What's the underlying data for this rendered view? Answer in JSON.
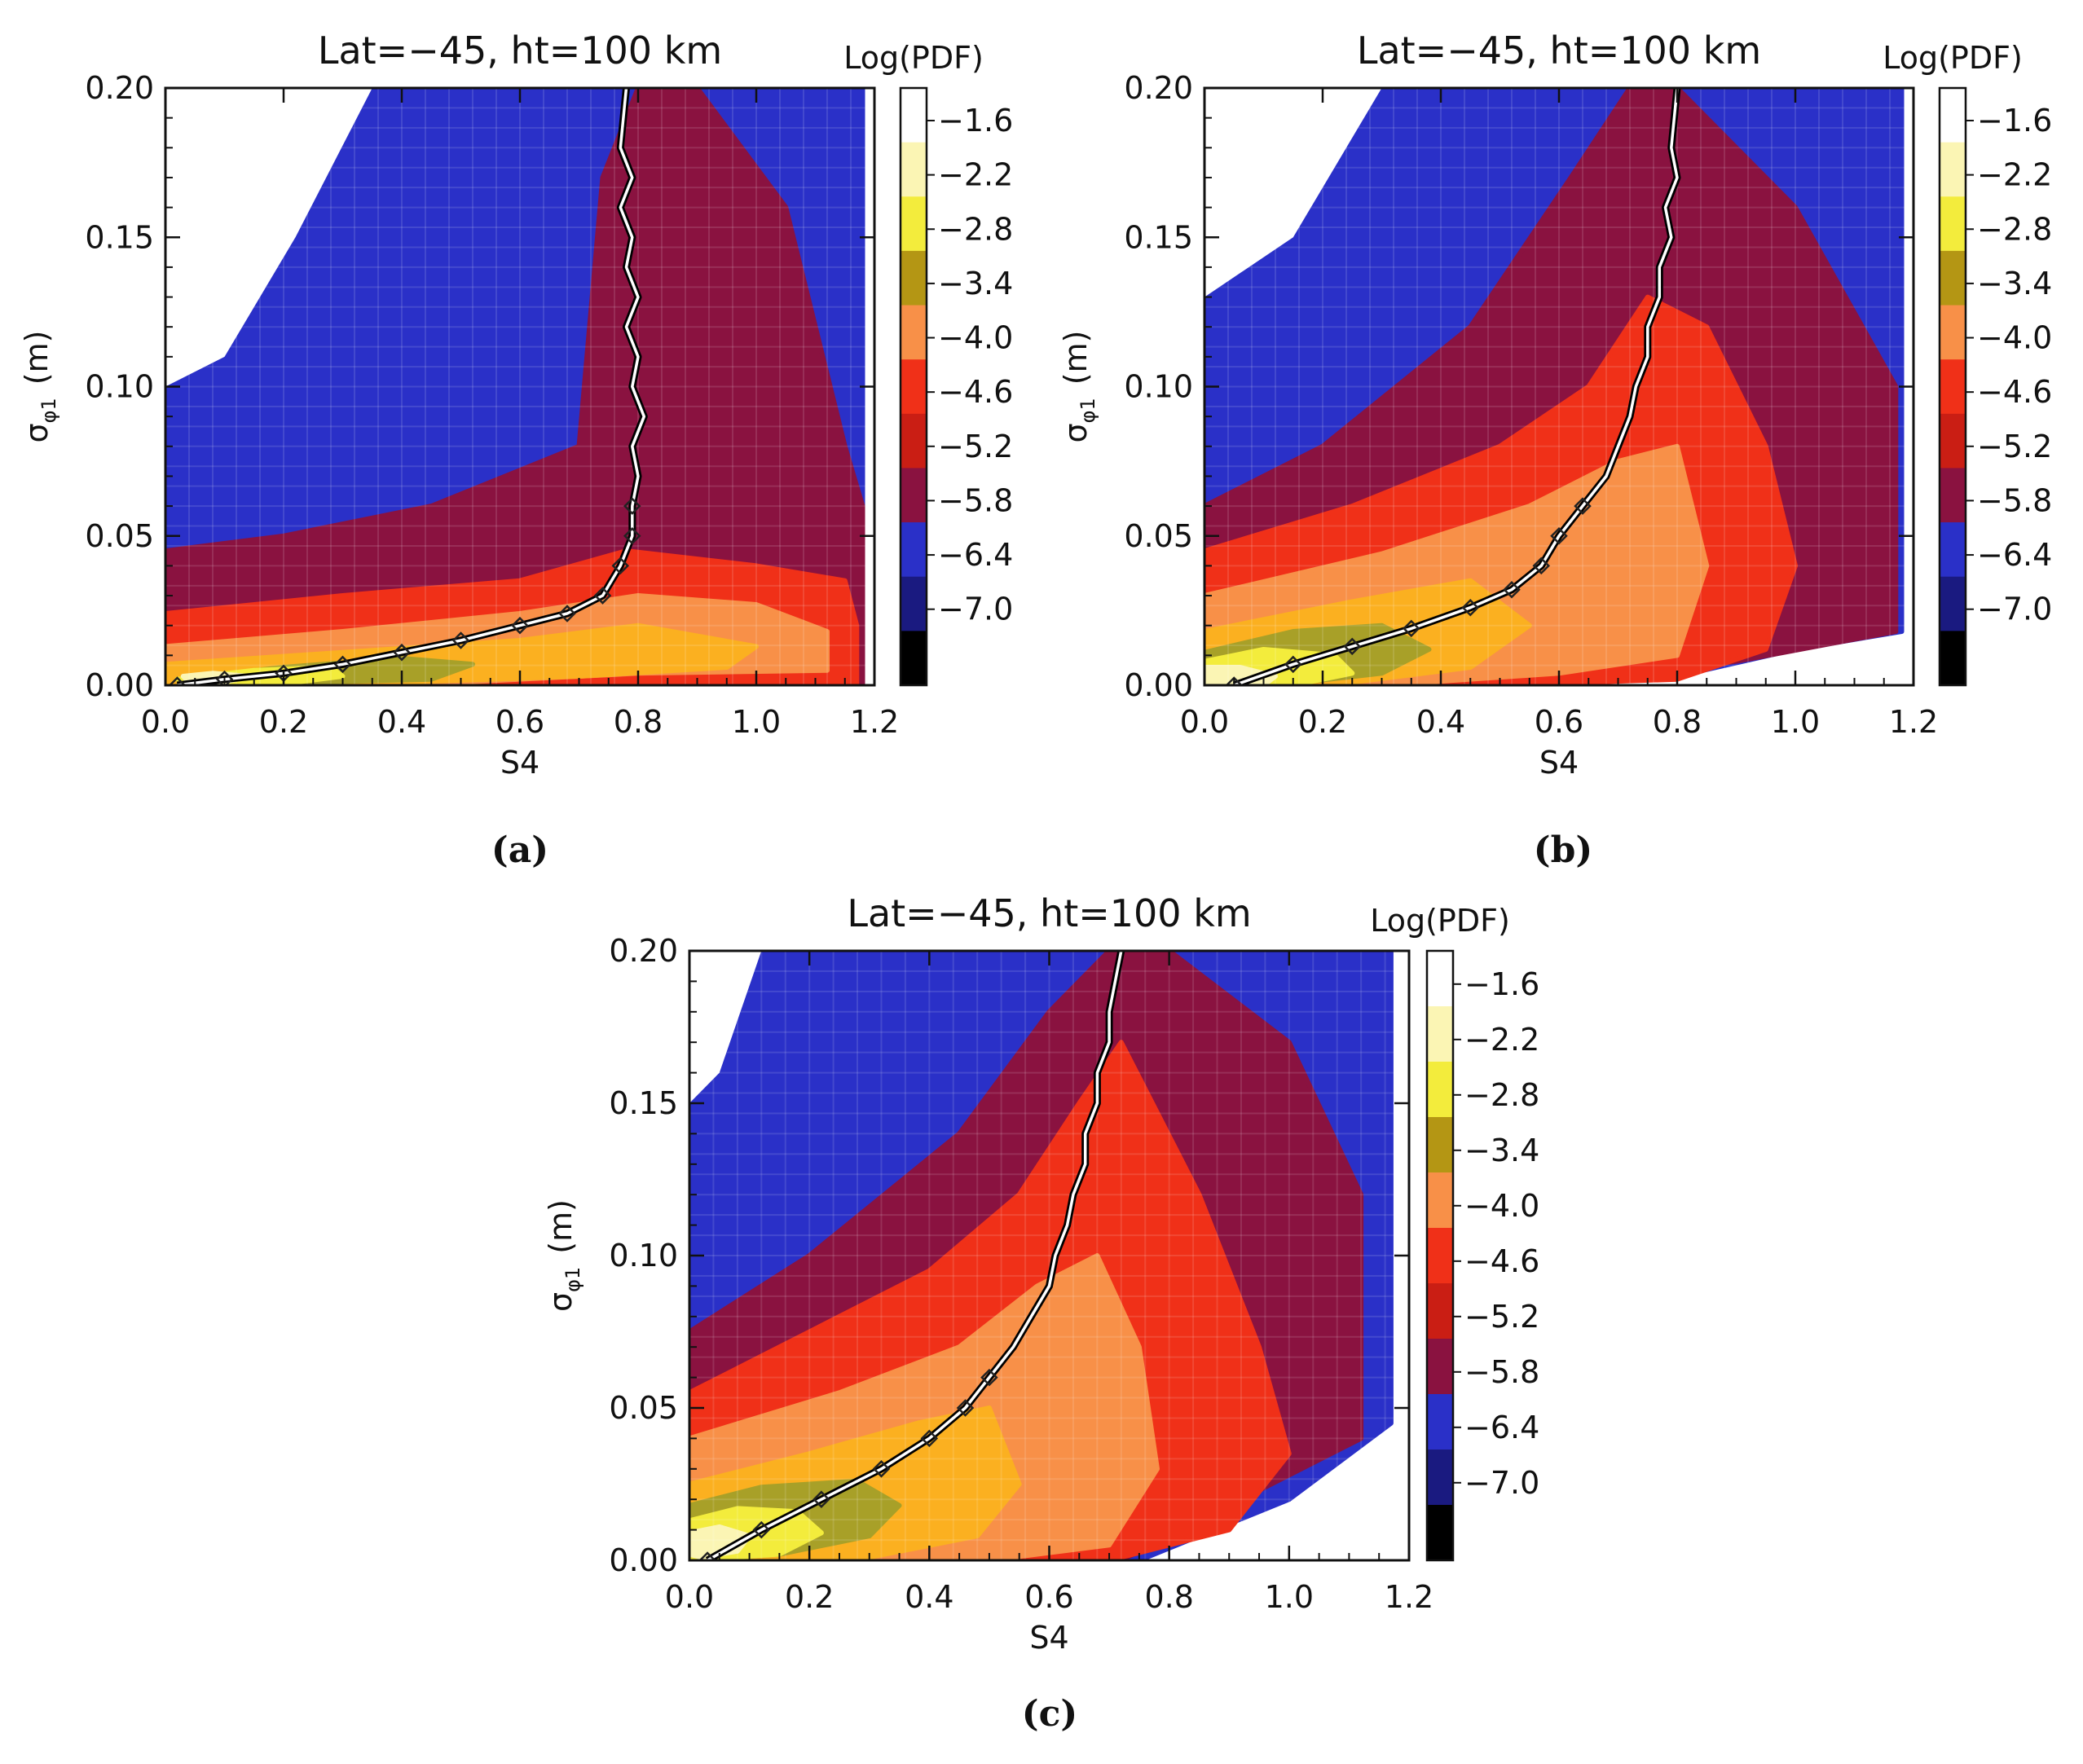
{
  "chart_data": [
    {
      "type": "heatmap",
      "panel_label": "(a)",
      "title": "Lat=−45,  ht=100 km",
      "xlabel": "S4",
      "ylabel_main": "σ",
      "ylabel_sub": "φ1",
      "ylabel_unit": "(m)",
      "xlim": [
        0.0,
        1.2
      ],
      "ylim": [
        0.0,
        0.2
      ],
      "xticks": [
        "0.0",
        "0.2",
        "0.4",
        "0.6",
        "0.8",
        "1.0",
        "1.2"
      ],
      "yticks": [
        "0.00",
        "0.05",
        "0.10",
        "0.15",
        "0.20"
      ],
      "colorbar": {
        "title": "Log(PDF)",
        "levels": [
          "−1.6",
          "−2.2",
          "−2.8",
          "−3.4",
          "−4.0",
          "−4.6",
          "−5.2",
          "−5.8",
          "−6.4",
          "−7.0"
        ],
        "colors": [
          "#ffffff",
          "#fbf5b4",
          "#f3ec3c",
          "#b49614",
          "#f89048",
          "#f03018",
          "#ca1e14",
          "#8a1240",
          "#2a30c8",
          "#1a1a80",
          "#000000"
        ]
      },
      "ridge_curve": {
        "x": [
          0.02,
          0.1,
          0.2,
          0.3,
          0.4,
          0.5,
          0.6,
          0.68,
          0.74,
          0.77,
          0.79,
          0.79,
          0.8,
          0.79,
          0.81,
          0.79,
          0.8,
          0.78,
          0.8,
          0.78,
          0.79,
          0.77,
          0.79,
          0.77,
          0.78
        ],
        "y": [
          0.0,
          0.002,
          0.004,
          0.007,
          0.011,
          0.015,
          0.02,
          0.024,
          0.03,
          0.04,
          0.05,
          0.06,
          0.07,
          0.08,
          0.09,
          0.1,
          0.11,
          0.12,
          0.13,
          0.14,
          0.15,
          0.16,
          0.17,
          0.18,
          0.2
        ]
      },
      "regions": [
        {
          "level": "−5.8",
          "color": "#2a30c8",
          "x": [
            0.0,
            0.0,
            0.05,
            0.3,
            0.6,
            1.0,
            1.18,
            1.18,
            1.0,
            0.6,
            0.3,
            0.0
          ],
          "y": [
            0.0,
            0.2,
            0.2,
            0.2,
            0.2,
            0.2,
            0.2,
            0.0,
            0.0,
            0.0,
            0.0,
            0.0
          ]
        },
        {
          "level": "−5.2",
          "color": "#8a1240",
          "x": [
            0.0,
            0.0,
            0.2,
            0.45,
            0.7,
            0.74,
            0.8,
            0.9,
            1.05,
            1.15,
            1.18,
            1.18,
            0.8,
            0.4,
            0.0
          ],
          "y": [
            0.0,
            0.045,
            0.05,
            0.06,
            0.08,
            0.17,
            0.2,
            0.2,
            0.16,
            0.08,
            0.06,
            0.0,
            0.0,
            0.0,
            0.0
          ]
        },
        {
          "level": "−4.6",
          "color": "#f03018",
          "x": [
            0.0,
            0.0,
            0.3,
            0.6,
            0.78,
            1.0,
            1.15,
            1.17,
            1.17,
            0.8,
            0.4,
            0.0
          ],
          "y": [
            0.0,
            0.024,
            0.03,
            0.035,
            0.045,
            0.04,
            0.035,
            0.02,
            0.0,
            0.0,
            0.0,
            0.0
          ]
        },
        {
          "level": "−4.0",
          "color": "#f89048",
          "x": [
            0.0,
            0.0,
            0.3,
            0.6,
            0.8,
            1.0,
            1.12,
            1.12,
            0.8,
            0.4,
            0.0
          ],
          "y": [
            0.0,
            0.013,
            0.018,
            0.024,
            0.03,
            0.027,
            0.018,
            0.005,
            0.004,
            0.0,
            0.0
          ]
        },
        {
          "level": "−3.4",
          "color": "#fbb020",
          "x": [
            0.0,
            0.0,
            0.3,
            0.6,
            0.8,
            1.0,
            0.95,
            0.7,
            0.4,
            0.0
          ],
          "y": [
            0.0,
            0.007,
            0.011,
            0.015,
            0.02,
            0.013,
            0.006,
            0.003,
            0.001,
            0.0
          ]
        },
        {
          "level": "−2.8",
          "color": "#a8a028",
          "x": [
            0.02,
            0.2,
            0.4,
            0.52,
            0.45,
            0.25,
            0.05
          ],
          "y": [
            0.002,
            0.006,
            0.009,
            0.007,
            0.002,
            0.001,
            0.0
          ]
        },
        {
          "level": "−2.2",
          "color": "#f3ec3c",
          "x": [
            0.02,
            0.15,
            0.28,
            0.3,
            0.18,
            0.05
          ],
          "y": [
            0.002,
            0.005,
            0.006,
            0.003,
            0.0,
            0.0
          ]
        },
        {
          "level": "−1.6",
          "color": "#fbf5b4",
          "x": [
            0.03,
            0.08,
            0.14,
            0.1,
            0.04
          ],
          "y": [
            0.003,
            0.004,
            0.003,
            0.001,
            0.001
          ]
        }
      ],
      "gaps": [
        {
          "x": [
            0.0,
            0.0,
            0.35,
            0.22,
            0.1
          ],
          "y": [
            0.1,
            0.2,
            0.2,
            0.15,
            0.11
          ]
        }
      ]
    },
    {
      "type": "heatmap",
      "panel_label": "(b)",
      "title": "Lat=−45,  ht=100 km",
      "xlabel": "S4",
      "ylabel_main": "σ",
      "ylabel_sub": "φ1",
      "ylabel_unit": "(m)",
      "xlim": [
        0.0,
        1.2
      ],
      "ylim": [
        0.0,
        0.2
      ],
      "xticks": [
        "0.0",
        "0.2",
        "0.4",
        "0.6",
        "0.8",
        "1.0",
        "1.2"
      ],
      "yticks": [
        "0.00",
        "0.05",
        "0.10",
        "0.15",
        "0.20"
      ],
      "colorbar": {
        "title": "Log(PDF)",
        "levels": [
          "−1.6",
          "−2.2",
          "−2.8",
          "−3.4",
          "−4.0",
          "−4.6",
          "−5.2",
          "−5.8",
          "−6.4",
          "−7.0"
        ],
        "colors": [
          "#ffffff",
          "#fbf5b4",
          "#f3ec3c",
          "#b49614",
          "#f89048",
          "#f03018",
          "#ca1e14",
          "#8a1240",
          "#2a30c8",
          "#1a1a80",
          "#000000"
        ]
      },
      "ridge_curve": {
        "x": [
          0.05,
          0.15,
          0.25,
          0.35,
          0.45,
          0.52,
          0.57,
          0.6,
          0.64,
          0.68,
          0.7,
          0.72,
          0.73,
          0.75,
          0.75,
          0.77,
          0.77,
          0.79,
          0.78,
          0.8,
          0.79,
          0.8
        ],
        "y": [
          0.0,
          0.007,
          0.013,
          0.019,
          0.026,
          0.032,
          0.04,
          0.05,
          0.06,
          0.07,
          0.08,
          0.09,
          0.1,
          0.11,
          0.12,
          0.13,
          0.14,
          0.15,
          0.16,
          0.17,
          0.18,
          0.2
        ]
      },
      "regions": [
        {
          "level": "−5.8",
          "color": "#2a30c8",
          "x": [
            0.0,
            0.0,
            1.18,
            1.18,
            1.0,
            0.8,
            0.5,
            0.0
          ],
          "y": [
            0.0,
            0.2,
            0.2,
            0.018,
            0.012,
            0.003,
            0.0,
            0.0
          ]
        },
        {
          "level": "−5.2",
          "color": "#8a1240",
          "x": [
            0.0,
            0.0,
            0.2,
            0.45,
            0.62,
            0.72,
            0.8,
            1.0,
            1.17,
            1.17,
            0.9,
            0.6,
            0.3,
            0.0
          ],
          "y": [
            0.0,
            0.06,
            0.08,
            0.12,
            0.17,
            0.2,
            0.2,
            0.16,
            0.1,
            0.018,
            0.008,
            0.0,
            0.0,
            0.0
          ]
        },
        {
          "level": "−4.6",
          "color": "#f03018",
          "x": [
            0.0,
            0.0,
            0.25,
            0.5,
            0.65,
            0.75,
            0.85,
            0.95,
            1.0,
            0.95,
            0.8,
            0.5,
            0.0
          ],
          "y": [
            0.0,
            0.045,
            0.06,
            0.08,
            0.1,
            0.13,
            0.12,
            0.08,
            0.04,
            0.012,
            0.002,
            0.0,
            0.0
          ]
        },
        {
          "level": "−4.0",
          "color": "#f89048",
          "x": [
            0.0,
            0.0,
            0.3,
            0.55,
            0.7,
            0.8,
            0.85,
            0.8,
            0.6,
            0.3,
            0.0
          ],
          "y": [
            0.0,
            0.03,
            0.044,
            0.06,
            0.075,
            0.08,
            0.04,
            0.01,
            0.004,
            0.0,
            0.0
          ]
        },
        {
          "level": "−3.4",
          "color": "#fbb020",
          "x": [
            0.0,
            0.0,
            0.25,
            0.45,
            0.55,
            0.45,
            0.25,
            0.0
          ],
          "y": [
            0.0,
            0.018,
            0.028,
            0.035,
            0.02,
            0.006,
            0.001,
            0.0
          ]
        },
        {
          "level": "−2.8",
          "color": "#a8a028",
          "x": [
            0.0,
            0.0,
            0.15,
            0.3,
            0.38,
            0.3,
            0.12,
            0.0
          ],
          "y": [
            0.0,
            0.011,
            0.018,
            0.02,
            0.012,
            0.004,
            0.0,
            0.0
          ]
        },
        {
          "level": "−2.2",
          "color": "#f3ec3c",
          "x": [
            0.0,
            0.0,
            0.1,
            0.22,
            0.25,
            0.15,
            0.0
          ],
          "y": [
            0.0,
            0.008,
            0.012,
            0.01,
            0.004,
            0.0,
            0.0
          ]
        },
        {
          "level": "−1.6",
          "color": "#fbf5b4",
          "x": [
            0.0,
            0.0,
            0.06,
            0.12,
            0.1,
            0.03
          ],
          "y": [
            0.0,
            0.006,
            0.006,
            0.003,
            0.0,
            0.0
          ]
        }
      ],
      "gaps": [
        {
          "x": [
            0.0,
            0.0,
            0.3,
            0.15
          ],
          "y": [
            0.13,
            0.2,
            0.2,
            0.15
          ]
        }
      ]
    },
    {
      "type": "heatmap",
      "panel_label": "(c)",
      "title": "Lat=−45,  ht=100 km",
      "xlabel": "S4",
      "ylabel_main": "σ",
      "ylabel_sub": "φ1",
      "ylabel_unit": "(m)",
      "xlim": [
        0.0,
        1.2
      ],
      "ylim": [
        0.0,
        0.2
      ],
      "xticks": [
        "0.0",
        "0.2",
        "0.4",
        "0.6",
        "0.8",
        "1.0",
        "1.2"
      ],
      "yticks": [
        "0.00",
        "0.05",
        "0.10",
        "0.15",
        "0.20"
      ],
      "colorbar": {
        "title": "Log(PDF)",
        "levels": [
          "−1.6",
          "−2.2",
          "−2.8",
          "−3.4",
          "−4.0",
          "−4.6",
          "−5.2",
          "−5.8",
          "−6.4",
          "−7.0"
        ],
        "colors": [
          "#ffffff",
          "#fbf5b4",
          "#f3ec3c",
          "#b49614",
          "#f89048",
          "#f03018",
          "#ca1e14",
          "#8a1240",
          "#2a30c8",
          "#1a1a80",
          "#000000"
        ]
      },
      "ridge_curve": {
        "x": [
          0.03,
          0.12,
          0.22,
          0.32,
          0.4,
          0.46,
          0.5,
          0.54,
          0.57,
          0.6,
          0.61,
          0.63,
          0.64,
          0.66,
          0.66,
          0.68,
          0.68,
          0.7,
          0.7,
          0.72
        ],
        "y": [
          0.0,
          0.01,
          0.02,
          0.03,
          0.04,
          0.05,
          0.06,
          0.07,
          0.08,
          0.09,
          0.1,
          0.11,
          0.12,
          0.13,
          0.14,
          0.15,
          0.16,
          0.17,
          0.18,
          0.2
        ]
      },
      "regions": [
        {
          "level": "−5.8",
          "color": "#2a30c8",
          "x": [
            0.0,
            0.0,
            1.17,
            1.17,
            1.0,
            0.75,
            0.0
          ],
          "y": [
            0.0,
            0.2,
            0.2,
            0.045,
            0.02,
            0.0,
            0.0
          ]
        },
        {
          "level": "−5.2",
          "color": "#8a1240",
          "x": [
            0.0,
            0.0,
            0.2,
            0.45,
            0.6,
            0.7,
            0.8,
            1.0,
            1.12,
            1.12,
            0.9,
            0.72,
            0.0
          ],
          "y": [
            0.0,
            0.075,
            0.1,
            0.14,
            0.18,
            0.2,
            0.2,
            0.17,
            0.12,
            0.04,
            0.018,
            0.0,
            0.0
          ]
        },
        {
          "level": "−4.6",
          "color": "#f03018",
          "x": [
            0.0,
            0.0,
            0.2,
            0.4,
            0.55,
            0.65,
            0.72,
            0.85,
            0.95,
            1.0,
            0.9,
            0.7,
            0.0
          ],
          "y": [
            0.0,
            0.055,
            0.075,
            0.095,
            0.12,
            0.15,
            0.17,
            0.12,
            0.07,
            0.035,
            0.01,
            0.0,
            0.0
          ]
        },
        {
          "level": "−4.0",
          "color": "#f89048",
          "x": [
            0.0,
            0.0,
            0.25,
            0.45,
            0.58,
            0.68,
            0.75,
            0.78,
            0.7,
            0.5,
            0.0
          ],
          "y": [
            0.0,
            0.04,
            0.055,
            0.07,
            0.09,
            0.1,
            0.07,
            0.03,
            0.005,
            0.0,
            0.0
          ]
        },
        {
          "level": "−3.4",
          "color": "#fbb020",
          "x": [
            0.0,
            0.0,
            0.2,
            0.38,
            0.5,
            0.55,
            0.48,
            0.3,
            0.0
          ],
          "y": [
            0.0,
            0.025,
            0.035,
            0.045,
            0.05,
            0.025,
            0.008,
            0.001,
            0.0
          ]
        },
        {
          "level": "−2.8",
          "color": "#a8a028",
          "x": [
            0.0,
            0.0,
            0.12,
            0.28,
            0.35,
            0.3,
            0.15,
            0.0
          ],
          "y": [
            0.0,
            0.018,
            0.024,
            0.026,
            0.018,
            0.008,
            0.002,
            0.0
          ]
        },
        {
          "level": "−2.2",
          "color": "#f3ec3c",
          "x": [
            0.0,
            0.0,
            0.08,
            0.18,
            0.22,
            0.15,
            0.0
          ],
          "y": [
            0.0,
            0.013,
            0.017,
            0.016,
            0.009,
            0.002,
            0.0
          ]
        },
        {
          "level": "−1.6",
          "color": "#fbf5b4",
          "x": [
            0.0,
            0.0,
            0.05,
            0.1,
            0.08,
            0.02
          ],
          "y": [
            0.002,
            0.009,
            0.011,
            0.008,
            0.003,
            0.001
          ]
        }
      ],
      "gaps": [
        {
          "x": [
            0.0,
            0.0,
            0.12,
            0.05
          ],
          "y": [
            0.15,
            0.2,
            0.2,
            0.16
          ]
        }
      ]
    }
  ]
}
